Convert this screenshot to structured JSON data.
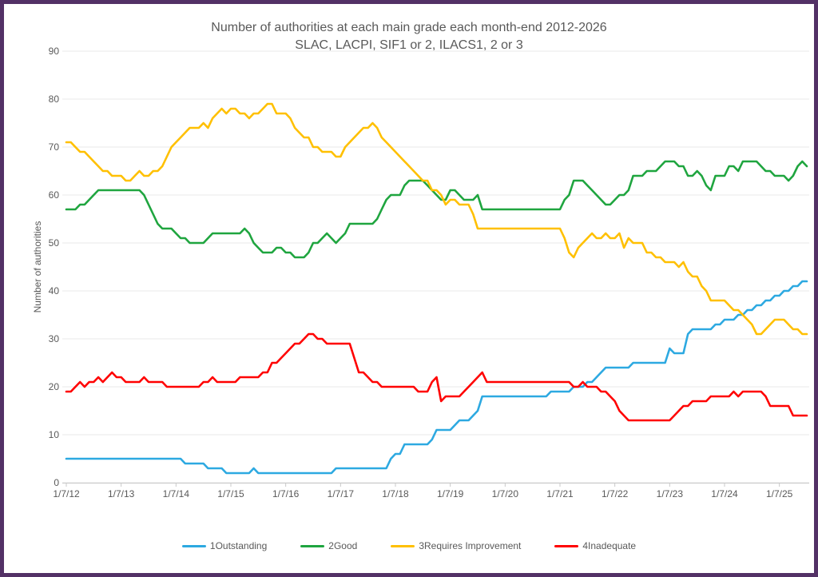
{
  "frame": {
    "border_color": "#533166",
    "background": "#ffffff"
  },
  "chart_data": {
    "type": "line",
    "title": "Number of authorities at each main grade each month-end 2012-2026",
    "subtitle": "SLAC, LACPI, SIF1 or 2, ILACS1, 2 or 3",
    "ylabel": "Number of authorities",
    "ylim": [
      0,
      90
    ],
    "yticks": [
      0,
      10,
      20,
      30,
      40,
      50,
      60,
      70,
      80,
      90
    ],
    "xticklabels": [
      "1/7/12",
      "1/7/13",
      "1/7/14",
      "1/7/15",
      "1/7/16",
      "1/7/17",
      "1/7/18",
      "1/7/19",
      "1/7/20",
      "1/7/21",
      "1/7/22",
      "1/7/23",
      "1/7/24",
      "1/7/25"
    ],
    "x_description": "monthly points, Jul 2012 to Jan 2026, x ticks every 12 months",
    "grid": "horizontal",
    "legend_position": "bottom",
    "text_color": "#595959",
    "grid_color": "#e8e8e8",
    "axis_color": "#c8c8c8",
    "series": [
      {
        "name": "1Outstanding",
        "color": "#2da9e1",
        "values": [
          5,
          5,
          5,
          5,
          5,
          5,
          5,
          5,
          5,
          5,
          5,
          5,
          5,
          5,
          5,
          5,
          5,
          5,
          5,
          5,
          5,
          5,
          5,
          5,
          5,
          5,
          4,
          4,
          4,
          4,
          4,
          3,
          3,
          3,
          3,
          2,
          2,
          2,
          2,
          2,
          2,
          3,
          2,
          2,
          2,
          2,
          2,
          2,
          2,
          2,
          2,
          2,
          2,
          2,
          2,
          2,
          2,
          2,
          2,
          3,
          3,
          3,
          3,
          3,
          3,
          3,
          3,
          3,
          3,
          3,
          3,
          5,
          6,
          6,
          8,
          8,
          8,
          8,
          8,
          8,
          9,
          11,
          11,
          11,
          11,
          12,
          13,
          13,
          13,
          14,
          15,
          18,
          18,
          18,
          18,
          18,
          18,
          18,
          18,
          18,
          18,
          18,
          18,
          18,
          18,
          18,
          19,
          19,
          19,
          19,
          19,
          20,
          20,
          20,
          21,
          21,
          22,
          23,
          24,
          24,
          24,
          24,
          24,
          24,
          25,
          25,
          25,
          25,
          25,
          25,
          25,
          25,
          28,
          27,
          27,
          27,
          31,
          32,
          32,
          32,
          32,
          32,
          33,
          33,
          34,
          34,
          34,
          35,
          35,
          36,
          36,
          37,
          37,
          38,
          38,
          39,
          39,
          40,
          40,
          41,
          41,
          42,
          42
        ]
      },
      {
        "name": "2Good",
        "color": "#1fa53f",
        "values": [
          57,
          57,
          57,
          58,
          58,
          59,
          60,
          61,
          61,
          61,
          61,
          61,
          61,
          61,
          61,
          61,
          61,
          60,
          58,
          56,
          54,
          53,
          53,
          53,
          52,
          51,
          51,
          50,
          50,
          50,
          50,
          51,
          52,
          52,
          52,
          52,
          52,
          52,
          52,
          53,
          52,
          50,
          49,
          48,
          48,
          48,
          49,
          49,
          48,
          48,
          47,
          47,
          47,
          48,
          50,
          50,
          51,
          52,
          51,
          50,
          51,
          52,
          54,
          54,
          54,
          54,
          54,
          54,
          55,
          57,
          59,
          60,
          60,
          60,
          62,
          63,
          63,
          63,
          63,
          62,
          61,
          60,
          59,
          59,
          61,
          61,
          60,
          59,
          59,
          59,
          60,
          57,
          57,
          57,
          57,
          57,
          57,
          57,
          57,
          57,
          57,
          57,
          57,
          57,
          57,
          57,
          57,
          57,
          57,
          59,
          60,
          63,
          63,
          63,
          62,
          61,
          60,
          59,
          58,
          58,
          59,
          60,
          60,
          61,
          64,
          64,
          64,
          65,
          65,
          65,
          66,
          67,
          67,
          67,
          66,
          66,
          64,
          64,
          65,
          64,
          62,
          61,
          64,
          64,
          64,
          66,
          66,
          65,
          67,
          67,
          67,
          67,
          66,
          65,
          65,
          64,
          64,
          64,
          63,
          64,
          66,
          67,
          66
        ]
      },
      {
        "name": "3Requires Improvement",
        "color": "#ffc000",
        "values": [
          71,
          71,
          70,
          69,
          69,
          68,
          67,
          66,
          65,
          65,
          64,
          64,
          64,
          63,
          63,
          64,
          65,
          64,
          64,
          65,
          65,
          66,
          68,
          70,
          71,
          72,
          73,
          74,
          74,
          74,
          75,
          74,
          76,
          77,
          78,
          77,
          78,
          78,
          77,
          77,
          76,
          77,
          77,
          78,
          79,
          79,
          77,
          77,
          77,
          76,
          74,
          73,
          72,
          72,
          70,
          70,
          69,
          69,
          69,
          68,
          68,
          70,
          71,
          72,
          73,
          74,
          74,
          75,
          74,
          72,
          71,
          70,
          69,
          68,
          67,
          66,
          65,
          64,
          63,
          63,
          61,
          61,
          60,
          58,
          59,
          59,
          58,
          58,
          58,
          56,
          53,
          53,
          53,
          53,
          53,
          53,
          53,
          53,
          53,
          53,
          53,
          53,
          53,
          53,
          53,
          53,
          53,
          53,
          53,
          51,
          48,
          47,
          49,
          50,
          51,
          52,
          51,
          51,
          52,
          51,
          51,
          52,
          49,
          51,
          50,
          50,
          50,
          48,
          48,
          47,
          47,
          46,
          46,
          46,
          45,
          46,
          44,
          43,
          43,
          41,
          40,
          38,
          38,
          38,
          38,
          37,
          36,
          36,
          35,
          34,
          33,
          31,
          31,
          32,
          33,
          34,
          34,
          34,
          33,
          32,
          32,
          31,
          31
        ]
      },
      {
        "name": "4Inadequate",
        "color": "#ff0000",
        "values": [
          19,
          19,
          20,
          21,
          20,
          21,
          21,
          22,
          21,
          22,
          23,
          22,
          22,
          21,
          21,
          21,
          21,
          22,
          21,
          21,
          21,
          21,
          20,
          20,
          20,
          20,
          20,
          20,
          20,
          20,
          21,
          21,
          22,
          21,
          21,
          21,
          21,
          21,
          22,
          22,
          22,
          22,
          22,
          23,
          23,
          25,
          25,
          26,
          27,
          28,
          29,
          29,
          30,
          31,
          31,
          30,
          30,
          29,
          29,
          29,
          29,
          29,
          29,
          26,
          23,
          23,
          22,
          21,
          21,
          20,
          20,
          20,
          20,
          20,
          20,
          20,
          20,
          19,
          19,
          19,
          21,
          22,
          17,
          18,
          18,
          18,
          18,
          19,
          20,
          21,
          22,
          23,
          21,
          21,
          21,
          21,
          21,
          21,
          21,
          21,
          21,
          21,
          21,
          21,
          21,
          21,
          21,
          21,
          21,
          21,
          21,
          20,
          20,
          21,
          20,
          20,
          20,
          19,
          19,
          18,
          17,
          15,
          14,
          13,
          13,
          13,
          13,
          13,
          13,
          13,
          13,
          13,
          13,
          14,
          15,
          16,
          16,
          17,
          17,
          17,
          17,
          18,
          18,
          18,
          18,
          18,
          19,
          18,
          19,
          19,
          19,
          19,
          19,
          18,
          16,
          16,
          16,
          16,
          16,
          14,
          14,
          14,
          14
        ]
      }
    ]
  }
}
